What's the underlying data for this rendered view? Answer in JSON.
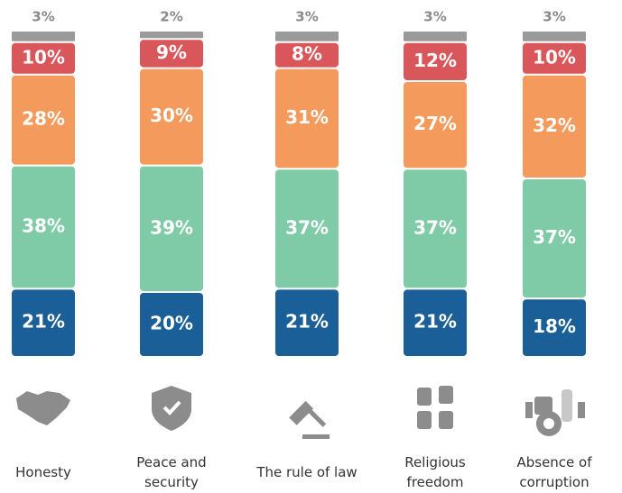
{
  "chart_data": {
    "type": "stacked_bar",
    "categories": [
      "Honesty",
      "Peace and security",
      "The rule of law",
      "Religious freedom",
      "Absence of corruption"
    ],
    "series": [
      {
        "color": "#1b5f98",
        "values": [
          21,
          20,
          21,
          21,
          18
        ],
        "value_labels": [
          "21%",
          "20%",
          "21%",
          "21%",
          "18%"
        ]
      },
      {
        "color": "#80cba7",
        "values": [
          38,
          39,
          37,
          37,
          37
        ],
        "value_labels": [
          "38%",
          "39%",
          "37%",
          "37%",
          "37%"
        ]
      },
      {
        "color": "#f39a5c",
        "values": [
          28,
          30,
          31,
          27,
          32
        ],
        "value_labels": [
          "28%",
          "30%",
          "31%",
          "27%",
          "32%"
        ]
      },
      {
        "color": "#d9575a",
        "values": [
          10,
          9,
          8,
          12,
          10
        ],
        "value_labels": [
          "10%",
          "9%",
          "8%",
          "12%",
          "10%"
        ]
      },
      {
        "color": "#9a9a9a",
        "values": [
          3,
          2,
          3,
          3,
          3
        ],
        "value_labels": [
          "3%",
          "2%",
          "3%",
          "3%",
          "3%"
        ]
      }
    ]
  }
}
